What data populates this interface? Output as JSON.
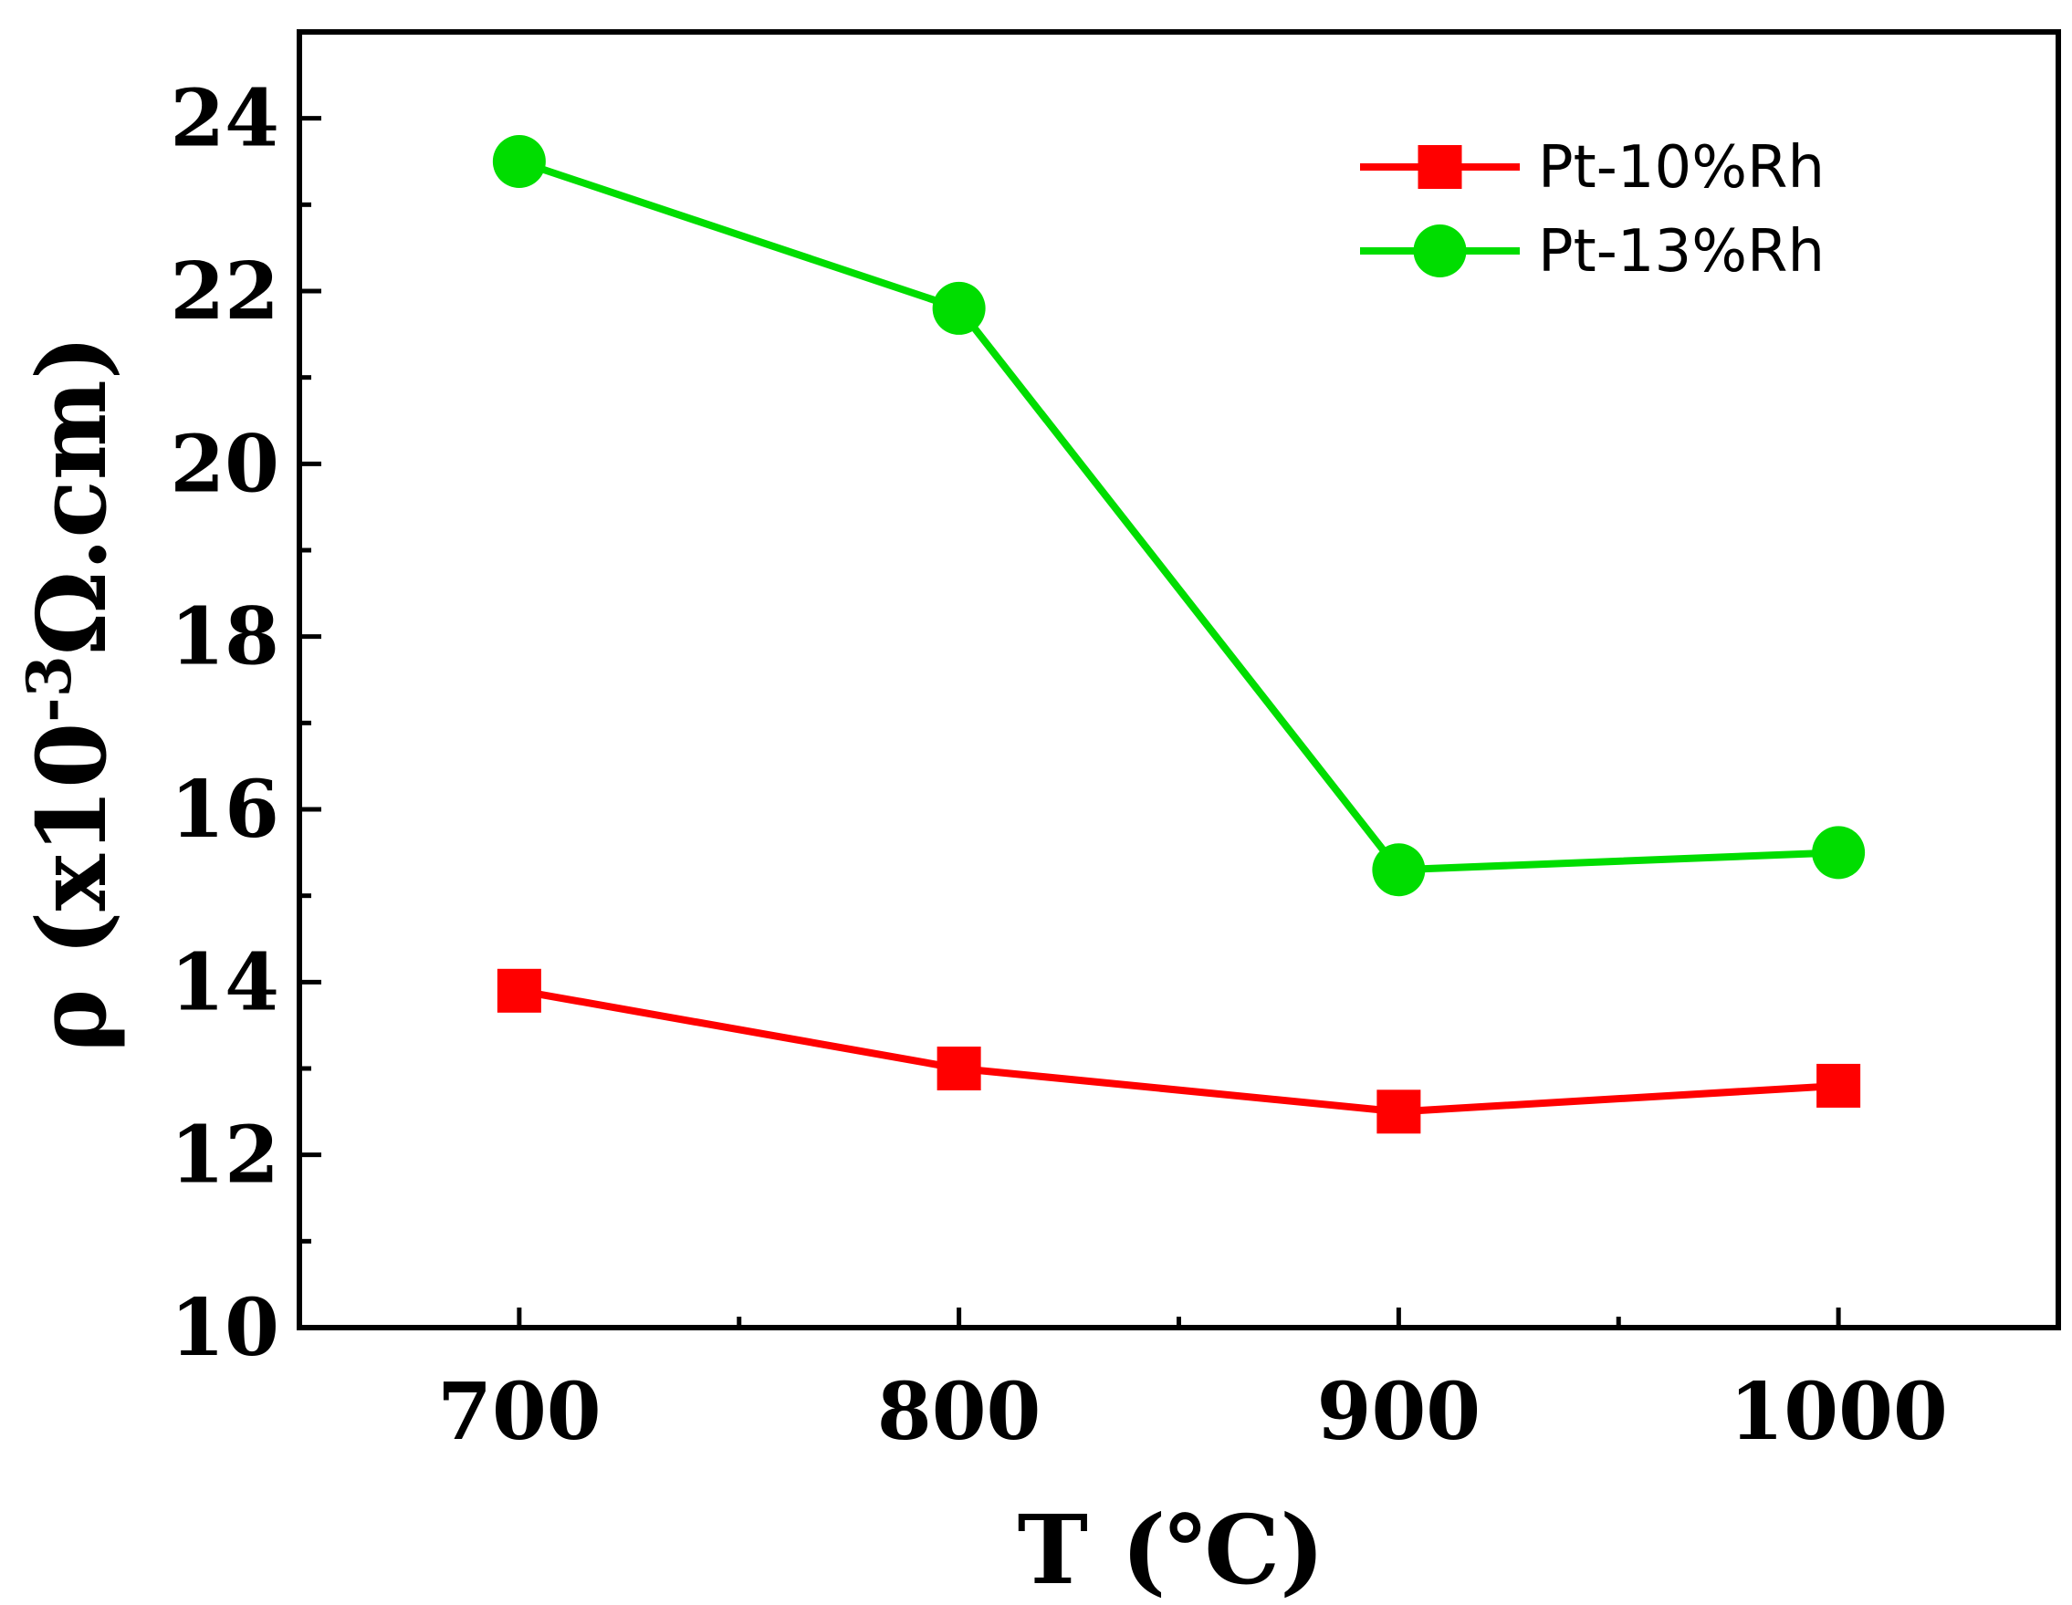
{
  "chart_data": {
    "type": "line",
    "x": [
      700,
      800,
      900,
      1000
    ],
    "xticks": [
      "700",
      "800",
      "900",
      "1000"
    ],
    "xlim": [
      650,
      1050
    ],
    "ylim": [
      10,
      25
    ],
    "yticks": [
      "10",
      "12",
      "14",
      "16",
      "18",
      "20",
      "22",
      "24"
    ],
    "xlabel": "T (℃)",
    "ylabel_main": "ρ (x10",
    "ylabel_sup": "-3",
    "ylabel_tail": "Ω.cm)",
    "legend_position": "top-right",
    "grid": false,
    "series": [
      {
        "name": "Pt-10%Rh",
        "color": "#ff0000",
        "marker": "square",
        "values": [
          13.9,
          13.0,
          12.5,
          12.8
        ]
      },
      {
        "name": "Pt-13%Rh",
        "color": "#00dd00",
        "marker": "circle",
        "values": [
          23.5,
          21.8,
          15.3,
          15.5
        ]
      }
    ]
  }
}
